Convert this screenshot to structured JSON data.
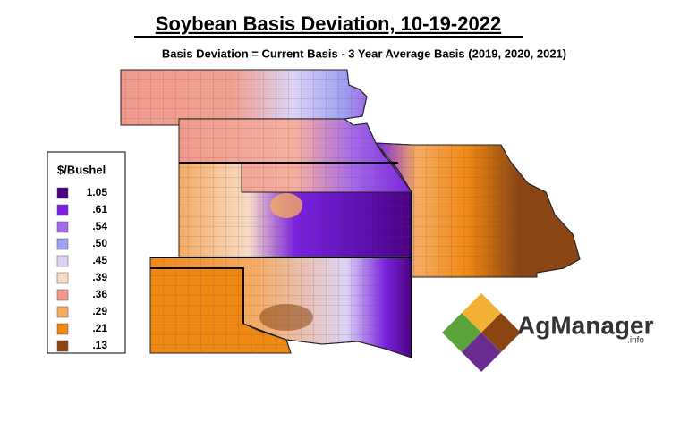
{
  "title": "Soybean Basis Deviation, 10-19-2022",
  "subtitle": "Basis Deviation = Current Basis - 3 Year Average Basis (2019, 2020, 2021)",
  "legend": {
    "title": "$/Bushel",
    "items": [
      {
        "label": "1.05",
        "color": "#4b0082"
      },
      {
        "label": ".61",
        "color": "#7a22e0"
      },
      {
        "label": ".54",
        "color": "#a36ae9"
      },
      {
        "label": ".50",
        "color": "#9ea2f2"
      },
      {
        "label": ".45",
        "color": "#ddd2f6"
      },
      {
        "label": ".39",
        "color": "#f6dcc6"
      },
      {
        "label": ".36",
        "color": "#f09a8c"
      },
      {
        "label": ".29",
        "color": "#f6ab62"
      },
      {
        "label": ".21",
        "color": "#ef8812"
      },
      {
        "label": ".13",
        "color": "#8b4513"
      }
    ]
  },
  "logo": {
    "name": "AgManager",
    "suffix": ".info"
  }
}
